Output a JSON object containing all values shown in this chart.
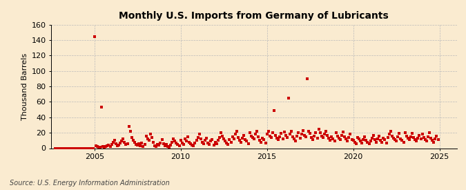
{
  "title": "Monthly U.S. Imports from Germany of Lubricants",
  "ylabel": "Thousand Barrels",
  "source": "Source: U.S. Energy Information Administration",
  "background_color": "#faebd0",
  "marker_color": "#cc0000",
  "xlim": [
    2002.5,
    2026.0
  ],
  "ylim": [
    0,
    160
  ],
  "yticks": [
    0,
    20,
    40,
    60,
    80,
    100,
    120,
    140,
    160
  ],
  "xticks": [
    2005,
    2010,
    2015,
    2020,
    2025
  ],
  "data": [
    [
      2002.75,
      0
    ],
    [
      2002.83,
      0
    ],
    [
      2002.92,
      0
    ],
    [
      2003.0,
      0
    ],
    [
      2003.08,
      0
    ],
    [
      2003.17,
      0
    ],
    [
      2003.25,
      0
    ],
    [
      2003.33,
      0
    ],
    [
      2003.42,
      0
    ],
    [
      2003.5,
      0
    ],
    [
      2003.58,
      0
    ],
    [
      2003.67,
      0
    ],
    [
      2003.75,
      0
    ],
    [
      2003.83,
      0
    ],
    [
      2003.92,
      0
    ],
    [
      2004.0,
      0
    ],
    [
      2004.08,
      0
    ],
    [
      2004.17,
      0
    ],
    [
      2004.25,
      0
    ],
    [
      2004.33,
      0
    ],
    [
      2004.42,
      0
    ],
    [
      2004.5,
      0
    ],
    [
      2004.58,
      0
    ],
    [
      2004.67,
      0
    ],
    [
      2004.75,
      0
    ],
    [
      2004.83,
      0
    ],
    [
      2004.92,
      0
    ],
    [
      2005.0,
      145
    ],
    [
      2005.08,
      3
    ],
    [
      2005.17,
      2
    ],
    [
      2005.25,
      1
    ],
    [
      2005.33,
      1
    ],
    [
      2005.42,
      53
    ],
    [
      2005.5,
      2
    ],
    [
      2005.58,
      1
    ],
    [
      2005.67,
      2
    ],
    [
      2005.75,
      3
    ],
    [
      2005.83,
      4
    ],
    [
      2005.92,
      2
    ],
    [
      2006.0,
      5
    ],
    [
      2006.08,
      8
    ],
    [
      2006.17,
      10
    ],
    [
      2006.25,
      6
    ],
    [
      2006.33,
      3
    ],
    [
      2006.42,
      4
    ],
    [
      2006.5,
      7
    ],
    [
      2006.58,
      9
    ],
    [
      2006.67,
      12
    ],
    [
      2006.75,
      8
    ],
    [
      2006.83,
      5
    ],
    [
      2006.92,
      6
    ],
    [
      2007.0,
      28
    ],
    [
      2007.08,
      22
    ],
    [
      2007.17,
      14
    ],
    [
      2007.25,
      10
    ],
    [
      2007.33,
      8
    ],
    [
      2007.42,
      5
    ],
    [
      2007.5,
      4
    ],
    [
      2007.58,
      6
    ],
    [
      2007.67,
      3
    ],
    [
      2007.75,
      7
    ],
    [
      2007.83,
      2
    ],
    [
      2007.92,
      5
    ],
    [
      2008.0,
      16
    ],
    [
      2008.08,
      12
    ],
    [
      2008.17,
      10
    ],
    [
      2008.25,
      18
    ],
    [
      2008.33,
      14
    ],
    [
      2008.42,
      8
    ],
    [
      2008.5,
      3
    ],
    [
      2008.58,
      2
    ],
    [
      2008.67,
      5
    ],
    [
      2008.75,
      4
    ],
    [
      2008.83,
      7
    ],
    [
      2008.92,
      11
    ],
    [
      2009.0,
      6
    ],
    [
      2009.08,
      3
    ],
    [
      2009.17,
      5
    ],
    [
      2009.25,
      2
    ],
    [
      2009.33,
      1
    ],
    [
      2009.42,
      4
    ],
    [
      2009.5,
      8
    ],
    [
      2009.58,
      12
    ],
    [
      2009.67,
      9
    ],
    [
      2009.75,
      7
    ],
    [
      2009.83,
      5
    ],
    [
      2009.92,
      3
    ],
    [
      2010.0,
      10
    ],
    [
      2010.08,
      7
    ],
    [
      2010.17,
      5
    ],
    [
      2010.25,
      12
    ],
    [
      2010.33,
      9
    ],
    [
      2010.42,
      15
    ],
    [
      2010.5,
      8
    ],
    [
      2010.58,
      6
    ],
    [
      2010.67,
      4
    ],
    [
      2010.75,
      3
    ],
    [
      2010.83,
      7
    ],
    [
      2010.92,
      10
    ],
    [
      2011.0,
      14
    ],
    [
      2011.08,
      18
    ],
    [
      2011.17,
      12
    ],
    [
      2011.25,
      8
    ],
    [
      2011.33,
      6
    ],
    [
      2011.42,
      10
    ],
    [
      2011.5,
      13
    ],
    [
      2011.58,
      7
    ],
    [
      2011.67,
      5
    ],
    [
      2011.75,
      9
    ],
    [
      2011.83,
      11
    ],
    [
      2011.92,
      4
    ],
    [
      2012.0,
      8
    ],
    [
      2012.08,
      6
    ],
    [
      2012.17,
      10
    ],
    [
      2012.25,
      14
    ],
    [
      2012.33,
      20
    ],
    [
      2012.42,
      16
    ],
    [
      2012.5,
      12
    ],
    [
      2012.58,
      9
    ],
    [
      2012.67,
      7
    ],
    [
      2012.75,
      5
    ],
    [
      2012.83,
      11
    ],
    [
      2012.92,
      8
    ],
    [
      2013.0,
      15
    ],
    [
      2013.08,
      12
    ],
    [
      2013.17,
      18
    ],
    [
      2013.25,
      22
    ],
    [
      2013.33,
      14
    ],
    [
      2013.42,
      10
    ],
    [
      2013.5,
      8
    ],
    [
      2013.58,
      13
    ],
    [
      2013.67,
      17
    ],
    [
      2013.75,
      11
    ],
    [
      2013.83,
      9
    ],
    [
      2013.92,
      6
    ],
    [
      2014.0,
      20
    ],
    [
      2014.08,
      16
    ],
    [
      2014.17,
      14
    ],
    [
      2014.25,
      12
    ],
    [
      2014.33,
      18
    ],
    [
      2014.42,
      22
    ],
    [
      2014.5,
      15
    ],
    [
      2014.58,
      10
    ],
    [
      2014.67,
      8
    ],
    [
      2014.75,
      13
    ],
    [
      2014.83,
      11
    ],
    [
      2014.92,
      7
    ],
    [
      2015.0,
      18
    ],
    [
      2015.08,
      22
    ],
    [
      2015.17,
      16
    ],
    [
      2015.25,
      14
    ],
    [
      2015.33,
      20
    ],
    [
      2015.42,
      49
    ],
    [
      2015.5,
      17
    ],
    [
      2015.58,
      13
    ],
    [
      2015.67,
      11
    ],
    [
      2015.75,
      15
    ],
    [
      2015.83,
      19
    ],
    [
      2015.92,
      12
    ],
    [
      2016.0,
      21
    ],
    [
      2016.08,
      17
    ],
    [
      2016.17,
      14
    ],
    [
      2016.25,
      65
    ],
    [
      2016.33,
      18
    ],
    [
      2016.42,
      22
    ],
    [
      2016.5,
      15
    ],
    [
      2016.58,
      12
    ],
    [
      2016.67,
      9
    ],
    [
      2016.75,
      16
    ],
    [
      2016.83,
      20
    ],
    [
      2016.92,
      13
    ],
    [
      2017.0,
      18
    ],
    [
      2017.08,
      23
    ],
    [
      2017.17,
      17
    ],
    [
      2017.25,
      15
    ],
    [
      2017.33,
      90
    ],
    [
      2017.42,
      22
    ],
    [
      2017.5,
      19
    ],
    [
      2017.58,
      14
    ],
    [
      2017.67,
      11
    ],
    [
      2017.75,
      16
    ],
    [
      2017.83,
      20
    ],
    [
      2017.92,
      13
    ],
    [
      2018.0,
      25
    ],
    [
      2018.08,
      20
    ],
    [
      2018.17,
      16
    ],
    [
      2018.25,
      14
    ],
    [
      2018.33,
      18
    ],
    [
      2018.42,
      22
    ],
    [
      2018.5,
      17
    ],
    [
      2018.58,
      13
    ],
    [
      2018.67,
      10
    ],
    [
      2018.75,
      15
    ],
    [
      2018.83,
      12
    ],
    [
      2018.92,
      9
    ],
    [
      2019.0,
      20
    ],
    [
      2019.08,
      16
    ],
    [
      2019.17,
      13
    ],
    [
      2019.25,
      11
    ],
    [
      2019.33,
      17
    ],
    [
      2019.42,
      21
    ],
    [
      2019.5,
      15
    ],
    [
      2019.58,
      12
    ],
    [
      2019.67,
      9
    ],
    [
      2019.75,
      14
    ],
    [
      2019.83,
      18
    ],
    [
      2019.92,
      11
    ],
    [
      2020.0,
      10
    ],
    [
      2020.08,
      8
    ],
    [
      2020.17,
      6
    ],
    [
      2020.25,
      14
    ],
    [
      2020.33,
      12
    ],
    [
      2020.42,
      9
    ],
    [
      2020.5,
      7
    ],
    [
      2020.58,
      11
    ],
    [
      2020.67,
      15
    ],
    [
      2020.75,
      10
    ],
    [
      2020.83,
      8
    ],
    [
      2020.92,
      6
    ],
    [
      2021.0,
      9
    ],
    [
      2021.08,
      13
    ],
    [
      2021.17,
      17
    ],
    [
      2021.25,
      11
    ],
    [
      2021.33,
      8
    ],
    [
      2021.42,
      12
    ],
    [
      2021.5,
      16
    ],
    [
      2021.58,
      10
    ],
    [
      2021.67,
      8
    ],
    [
      2021.75,
      13
    ],
    [
      2021.83,
      11
    ],
    [
      2021.92,
      7
    ],
    [
      2022.0,
      14
    ],
    [
      2022.08,
      18
    ],
    [
      2022.17,
      22
    ],
    [
      2022.25,
      16
    ],
    [
      2022.33,
      13
    ],
    [
      2022.42,
      11
    ],
    [
      2022.5,
      9
    ],
    [
      2022.58,
      15
    ],
    [
      2022.67,
      19
    ],
    [
      2022.75,
      12
    ],
    [
      2022.83,
      10
    ],
    [
      2022.92,
      8
    ],
    [
      2023.0,
      20
    ],
    [
      2023.08,
      16
    ],
    [
      2023.17,
      13
    ],
    [
      2023.25,
      11
    ],
    [
      2023.33,
      15
    ],
    [
      2023.42,
      19
    ],
    [
      2023.5,
      14
    ],
    [
      2023.58,
      11
    ],
    [
      2023.67,
      9
    ],
    [
      2023.75,
      13
    ],
    [
      2023.83,
      17
    ],
    [
      2023.92,
      12
    ],
    [
      2024.0,
      18
    ],
    [
      2024.08,
      14
    ],
    [
      2024.17,
      11
    ],
    [
      2024.25,
      9
    ],
    [
      2024.33,
      15
    ],
    [
      2024.42,
      20
    ],
    [
      2024.5,
      13
    ],
    [
      2024.58,
      10
    ],
    [
      2024.67,
      8
    ],
    [
      2024.75,
      12
    ],
    [
      2024.83,
      16
    ],
    [
      2024.92,
      11
    ]
  ]
}
